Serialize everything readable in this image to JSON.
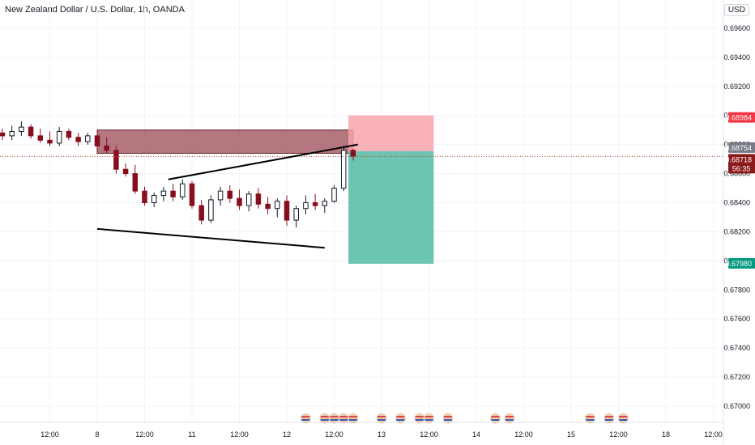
{
  "header": {
    "title": "New Zealand Dollar / U.S. Dollar, 1h, OANDA",
    "currency": "USD"
  },
  "colors": {
    "up": "#089981",
    "down": "#880e1f",
    "zone": "#9b4a55",
    "stop": "#f7a4ab",
    "target": "#5cbfa7",
    "last_price_tag": "#8b1a1a",
    "stop_tag": "#f23645",
    "target_tag": "#089981",
    "entry_tag": "#787b86"
  },
  "chart_data": {
    "type": "candlestick",
    "title": "New Zealand Dollar / U.S. Dollar, 1h, OANDA",
    "ylim": [
      0.669,
      0.6975
    ],
    "y_ticks": [
      "0.69600",
      "0.69400",
      "0.69200",
      "0.69000",
      "0.68800",
      "0.68600",
      "0.68400",
      "0.68200",
      "0.68000",
      "0.67800",
      "0.67600",
      "0.67400",
      "0.67200",
      "0.67000"
    ],
    "y_tick_values": [
      0.696,
      0.694,
      0.692,
      0.69,
      0.688,
      0.686,
      0.684,
      0.682,
      0.68,
      0.678,
      0.676,
      0.674,
      0.672,
      0.67
    ],
    "x_ticks": [
      "12:00",
      "8",
      "12:00",
      "11",
      "12:00",
      "12",
      "12:00",
      "13",
      "12:00",
      "14",
      "12:00",
      "15",
      "12:00",
      "18",
      "12:00"
    ],
    "x_tick_positions": [
      0.5,
      1,
      1.5,
      2,
      2.5,
      3,
      3.5,
      4,
      4.5,
      5,
      5.5,
      6,
      6.5,
      7,
      7.5
    ],
    "candles": [
      [
        0.0,
        0.6888,
        0.6891,
        0.6883,
        0.6886
      ],
      [
        0.1,
        0.6886,
        0.6893,
        0.6883,
        0.6889
      ],
      [
        0.2,
        0.6889,
        0.6896,
        0.6886,
        0.6892
      ],
      [
        0.3,
        0.6892,
        0.6894,
        0.6884,
        0.6886
      ],
      [
        0.4,
        0.6886,
        0.6891,
        0.6881,
        0.6883
      ],
      [
        0.5,
        0.6883,
        0.6889,
        0.6879,
        0.6881
      ],
      [
        0.6,
        0.6881,
        0.6892,
        0.6879,
        0.6889
      ],
      [
        0.7,
        0.6889,
        0.6891,
        0.6883,
        0.6885
      ],
      [
        0.8,
        0.6885,
        0.6888,
        0.6879,
        0.6882
      ],
      [
        0.9,
        0.6882,
        0.6888,
        0.688,
        0.6886
      ],
      [
        1.0,
        0.6886,
        0.6889,
        0.6877,
        0.6879
      ],
      [
        1.1,
        0.6879,
        0.6885,
        0.6874,
        0.6876
      ],
      [
        1.2,
        0.6876,
        0.6879,
        0.686,
        0.6863
      ],
      [
        1.3,
        0.6863,
        0.6867,
        0.6858,
        0.686
      ],
      [
        1.4,
        0.686,
        0.6866,
        0.6846,
        0.6848
      ],
      [
        1.5,
        0.6848,
        0.6851,
        0.6838,
        0.684
      ],
      [
        1.6,
        0.684,
        0.6847,
        0.6837,
        0.6845
      ],
      [
        1.7,
        0.6845,
        0.6851,
        0.6841,
        0.6848
      ],
      [
        1.8,
        0.6848,
        0.6853,
        0.6841,
        0.6844
      ],
      [
        1.9,
        0.6844,
        0.6856,
        0.6842,
        0.6853
      ],
      [
        2.0,
        0.6853,
        0.6855,
        0.6836,
        0.6838
      ],
      [
        2.1,
        0.6838,
        0.6842,
        0.6825,
        0.6828
      ],
      [
        2.2,
        0.6828,
        0.6845,
        0.6826,
        0.6842
      ],
      [
        2.3,
        0.6842,
        0.6851,
        0.6838,
        0.6848
      ],
      [
        2.4,
        0.6848,
        0.6852,
        0.684,
        0.6843
      ],
      [
        2.5,
        0.6843,
        0.6849,
        0.6835,
        0.6838
      ],
      [
        2.6,
        0.6838,
        0.6848,
        0.6834,
        0.6846
      ],
      [
        2.7,
        0.6846,
        0.685,
        0.6836,
        0.6839
      ],
      [
        2.8,
        0.6839,
        0.6844,
        0.6832,
        0.6836
      ],
      [
        2.9,
        0.6836,
        0.6843,
        0.683,
        0.6841
      ],
      [
        3.0,
        0.6841,
        0.6845,
        0.6824,
        0.6828
      ],
      [
        3.1,
        0.6828,
        0.6838,
        0.6823,
        0.6836
      ],
      [
        3.2,
        0.6836,
        0.6845,
        0.6832,
        0.684
      ],
      [
        3.3,
        0.684,
        0.6846,
        0.6835,
        0.6838
      ],
      [
        3.4,
        0.6838,
        0.6843,
        0.6833,
        0.6841
      ],
      [
        3.5,
        0.6841,
        0.6852,
        0.684,
        0.685
      ],
      [
        3.6,
        0.685,
        0.6878,
        0.6848,
        0.6876
      ],
      [
        3.7,
        0.6876,
        0.6877,
        0.6869,
        0.6872
      ]
    ],
    "annotations": {
      "zone": {
        "from_x": 1.0,
        "to_x": 3.7,
        "top": 0.689,
        "bottom": 0.6874
      },
      "upper_trendline": [
        [
          1.75,
          0.6856
        ],
        [
          3.75,
          0.688
        ]
      ],
      "lower_trendline": [
        [
          1.0,
          0.6822
        ],
        [
          3.4,
          0.6809
        ]
      ],
      "position": {
        "from_x": 3.65,
        "to_x": 4.55,
        "stop": 0.69,
        "entry": 0.68754,
        "target": 0.6798
      }
    },
    "price_tags": [
      {
        "label": "0.68984",
        "value": 0.68984,
        "kind": "stop"
      },
      {
        "label": "0.68754",
        "value": 0.68754,
        "kind": "entry"
      },
      {
        "label": "0.68718",
        "value": 0.68718,
        "kind": "last"
      },
      {
        "label": "0.67980",
        "value": 0.6798,
        "kind": "target"
      }
    ],
    "countdown": "56:35",
    "events_x": [
      3.2,
      3.4,
      3.5,
      3.6,
      3.7,
      4.0,
      4.2,
      4.4,
      4.5,
      4.7,
      5.2,
      5.35,
      6.2,
      6.4,
      6.55
    ]
  }
}
